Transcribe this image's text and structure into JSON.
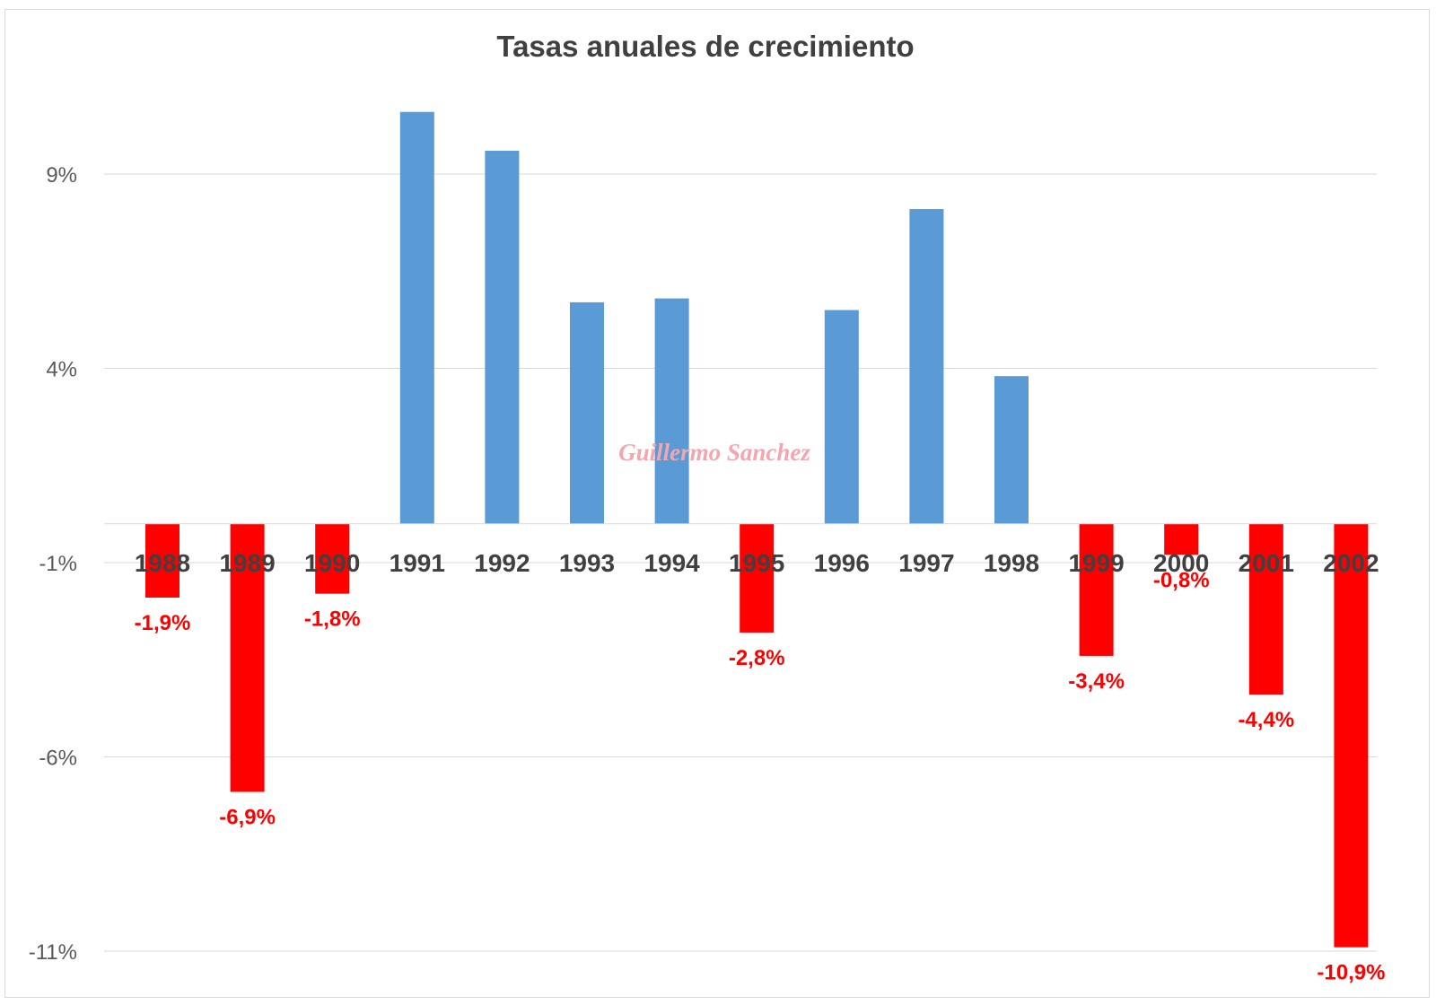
{
  "chart_data": {
    "type": "bar",
    "title": "Tasas anuales de crecimiento",
    "xlabel": "",
    "ylabel": "",
    "categories": [
      "1988",
      "1989",
      "1990",
      "1991",
      "1992",
      "1993",
      "1994",
      "1995",
      "1996",
      "1997",
      "1998",
      "1999",
      "2000",
      "2001",
      "2002"
    ],
    "values": [
      -1.9,
      -6.9,
      -1.8,
      10.6,
      9.6,
      5.7,
      5.8,
      -2.8,
      5.5,
      8.1,
      3.8,
      -3.4,
      -0.8,
      -4.4,
      -10.9
    ],
    "data_labels": {
      "1988": "-1,9%",
      "1989": "-6,9%",
      "1990": "-1,8%",
      "1995": "-2,8%",
      "1999": "-3,4%",
      "2000": "-0,8%",
      "2001": "-4,4%",
      "2002": "-10,9%"
    },
    "y_ticks": [
      9,
      4,
      -1,
      -6,
      -11
    ],
    "y_tick_labels": [
      "9%",
      "4%",
      "-1%",
      "-6%",
      "-11%"
    ],
    "ylim": [
      -11,
      11
    ],
    "grid": true,
    "legend": "none",
    "colors": {
      "positive": "#5b9bd5",
      "negative": "#ff0000",
      "grid": "#d9d9d9",
      "title": "#404040"
    }
  },
  "watermark": "Guillermo Sanchez"
}
